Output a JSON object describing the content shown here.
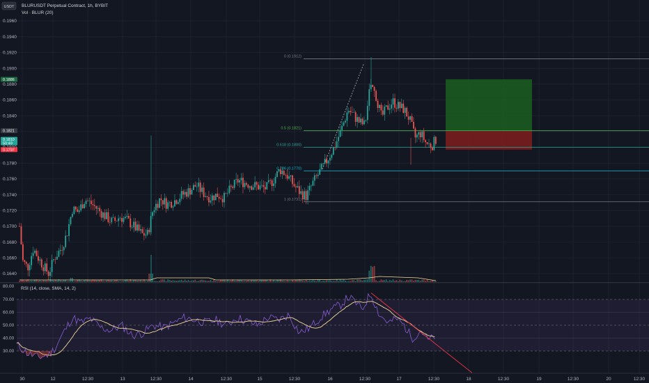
{
  "header": {
    "currency_badge": "USDT",
    "symbol_line": "BLURUSDT Perpetual Contract, 1h, BYBIT",
    "volume_line": "Vol · BLUR (20)"
  },
  "price_axis": {
    "ticks": [
      "0.1960",
      "0.1940",
      "0.1920",
      "0.1900",
      "0.1880",
      "0.1860",
      "0.1840",
      "0.1820",
      "0.1800",
      "0.1780",
      "0.1760",
      "0.1740",
      "0.1720",
      "0.1700",
      "0.1680",
      "0.1660",
      "0.1640"
    ],
    "tick_values": [
      0.196,
      0.194,
      0.192,
      0.19,
      0.188,
      0.186,
      0.184,
      0.182,
      0.18,
      0.178,
      0.176,
      0.174,
      0.172,
      0.17,
      0.168,
      0.166,
      0.164
    ],
    "tags": [
      {
        "label": "0.1886",
        "value": 0.1886,
        "color": "#1e6b43"
      },
      {
        "label": "0.1821",
        "value": 0.1821,
        "color": "#363a45"
      },
      {
        "label": "0.1810",
        "label2": "50:49",
        "value": 0.181,
        "color": "#26a69a"
      },
      {
        "label": "0.1797",
        "value": 0.1797,
        "color": "#f23645"
      }
    ],
    "volume_tag": "80.00"
  },
  "time_axis": {
    "labels": [
      "30",
      "12",
      "12:30",
      "13",
      "12:30",
      "14",
      "12:30",
      "15",
      "12:30",
      "16",
      "12:30",
      "17",
      "12:30",
      "18",
      "12:30",
      "19",
      "12:30",
      "20",
      "12:30"
    ]
  },
  "fibonacci": {
    "levels": [
      {
        "label": "0 (0.1912)",
        "value": 0.1912,
        "color": "#787b86"
      },
      {
        "label": "0.5 (0.1821)",
        "value": 0.1821,
        "color": "#4caf50"
      },
      {
        "label": "0.618 (0.1800)",
        "value": 0.18,
        "color": "#26a69a"
      },
      {
        "label": "0.786 (0.1770)",
        "value": 0.177,
        "color": "#00bcd4"
      },
      {
        "label": "1 (0.1731)",
        "value": 0.1731,
        "color": "#787b86"
      }
    ]
  },
  "position": {
    "target": 0.1886,
    "entry": 0.1821,
    "stop": 0.1797,
    "profit_color": "#1b5e20",
    "loss_color": "#7f1d1d"
  },
  "rsi": {
    "title": "RSI (14, close, SMA, 14, 2)",
    "ticks": [
      "70.00",
      "60.00",
      "50.00",
      "40.00",
      "30.00"
    ],
    "tick_values": [
      70,
      60,
      50,
      40,
      30
    ],
    "line_color": "#7e57c2",
    "ma_color": "#f5d99a",
    "trendline_color": "#f23645"
  },
  "colors": {
    "up": "#26a69a",
    "down": "#ef5350",
    "background": "#131722"
  }
}
